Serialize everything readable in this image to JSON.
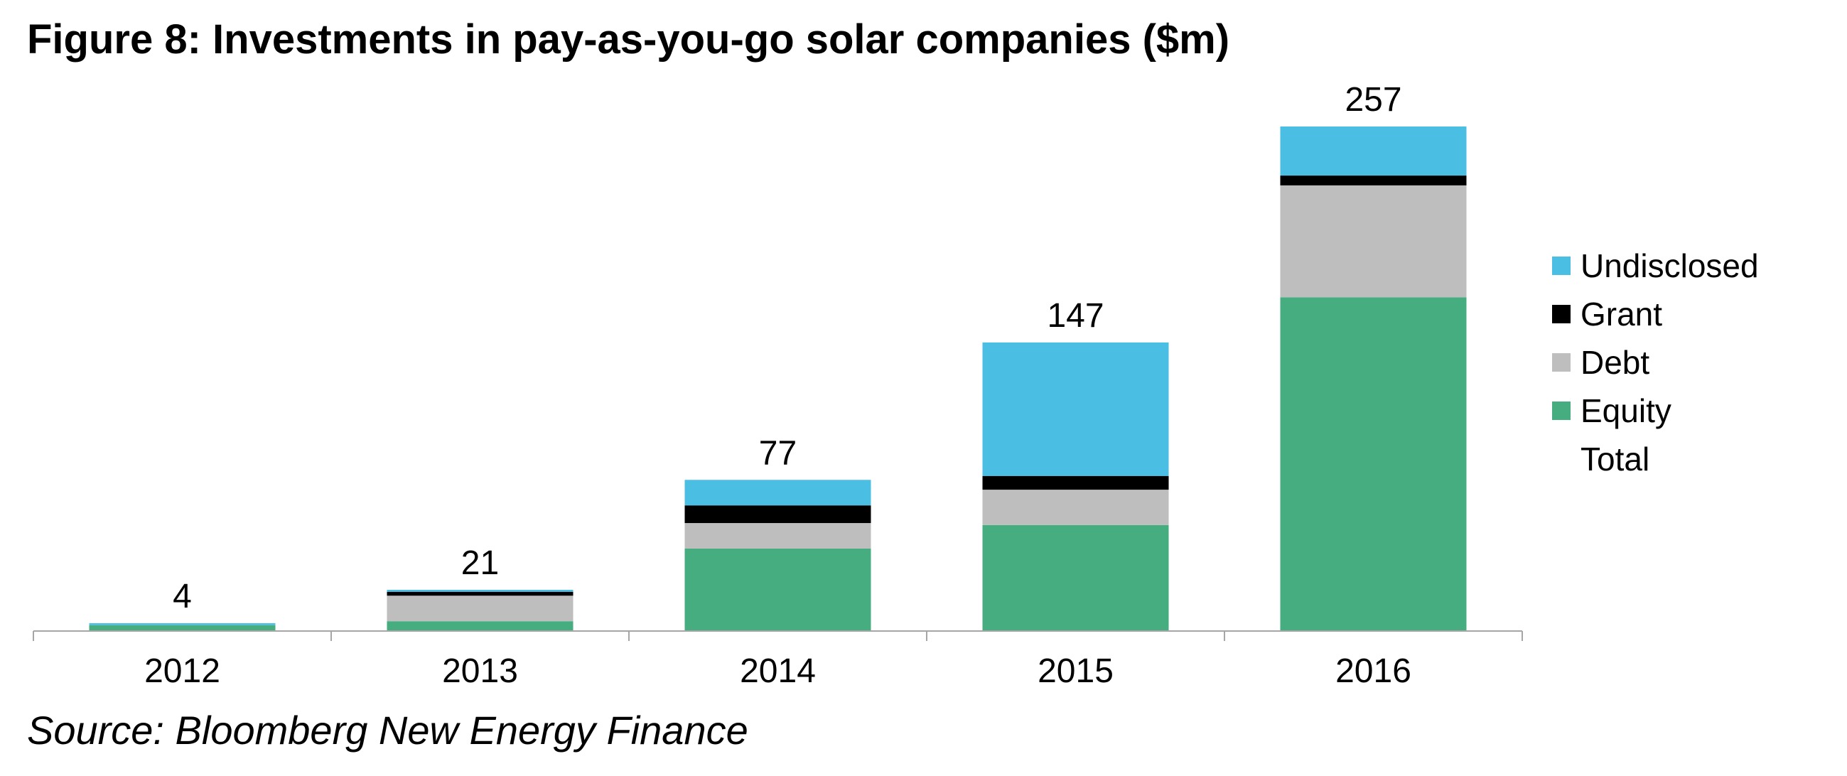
{
  "title": "Figure 8: Investments in pay-as-you-go solar companies ($m)",
  "source": "Source: Bloomberg New Energy Finance",
  "chart_data": {
    "type": "bar",
    "stacked": true,
    "categories": [
      "2012",
      "2013",
      "2014",
      "2015",
      "2016"
    ],
    "series": [
      {
        "name": "Equity",
        "color": "#45AD7F",
        "values": [
          3,
          5,
          42,
          54,
          170
        ]
      },
      {
        "name": "Debt",
        "color": "#BFBEBE",
        "values": [
          0,
          13,
          13,
          18,
          57
        ]
      },
      {
        "name": "Grant",
        "color": "#000000",
        "values": [
          0,
          2,
          9,
          7,
          5
        ]
      },
      {
        "name": "Undisclosed",
        "color": "#4BBFE3",
        "values": [
          1,
          1,
          13,
          68,
          25
        ]
      }
    ],
    "totals": {
      "name": "Total",
      "values": [
        4,
        21,
        77,
        147,
        257
      ]
    },
    "legend_order": [
      "Undisclosed",
      "Grant",
      "Debt",
      "Equity",
      "Total"
    ],
    "legend_position": "right",
    "ylim": [
      0,
      257
    ],
    "grid": false,
    "y_axis_visible": false
  }
}
